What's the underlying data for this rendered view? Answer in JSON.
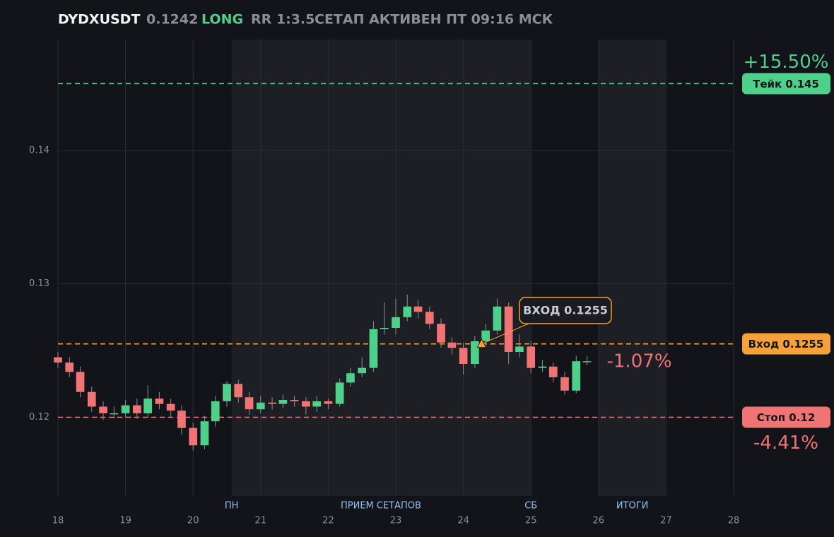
{
  "chart_data": {
    "type": "candlestick",
    "header": {
      "symbol": "DYDXUSDT",
      "price": "0.1242",
      "side": "LONG",
      "rr": "RR 1:3.5",
      "status": "СЕТАП АКТИВЕН ПТ 09:16 МСК"
    },
    "up_color": "#4fd08a",
    "down_color": "#f07474",
    "x": [
      18,
      18.17,
      18.33,
      18.5,
      18.67,
      18.83,
      19,
      19.17,
      19.33,
      19.5,
      19.67,
      19.83,
      20,
      20.17,
      20.33,
      20.5,
      20.67,
      20.83,
      21,
      21.17,
      21.33,
      21.5,
      21.67,
      21.83,
      22,
      22.17,
      22.33,
      22.5,
      22.67,
      22.83,
      23,
      23.17,
      23.33,
      23.5,
      23.67,
      23.83,
      24,
      24.17,
      24.33,
      24.5,
      24.67,
      24.83,
      25,
      25.17,
      25.33,
      25.5,
      25.67,
      25.83
    ],
    "open": [
      0.1245,
      0.1241,
      0.1234,
      0.1219,
      0.1208,
      0.1203,
      0.1203,
      0.1209,
      0.1203,
      0.1214,
      0.121,
      0.1205,
      0.1192,
      0.1179,
      0.1197,
      0.1212,
      0.1225,
      0.1215,
      0.1206,
      0.1211,
      0.121,
      0.1213,
      0.1212,
      0.1208,
      0.1212,
      0.121,
      0.1226,
      0.1233,
      0.1237,
      0.1266,
      0.1267,
      0.1275,
      0.1283,
      0.1279,
      0.127,
      0.1256,
      0.1252,
      0.124,
      0.1257,
      0.1265,
      0.1283,
      0.1249,
      0.1253,
      0.1237,
      0.1238,
      0.123,
      0.122,
      0.1242
    ],
    "high": [
      0.1249,
      0.1245,
      0.1238,
      0.1223,
      0.1212,
      0.1208,
      0.1213,
      0.1214,
      0.1224,
      0.1219,
      0.1214,
      0.1209,
      0.1196,
      0.1201,
      0.1216,
      0.1227,
      0.1228,
      0.1219,
      0.1216,
      0.1215,
      0.1217,
      0.1216,
      0.1215,
      0.1216,
      0.1214,
      0.1229,
      0.1237,
      0.1245,
      0.1272,
      0.1286,
      0.1289,
      0.1292,
      0.1288,
      0.1283,
      0.1274,
      0.126,
      0.1256,
      0.1261,
      0.127,
      0.1289,
      0.1286,
      0.1262,
      0.1257,
      0.1243,
      0.1241,
      0.1234,
      0.1246,
      0.1246
    ],
    "low": [
      0.1237,
      0.123,
      0.1215,
      0.1204,
      0.1198,
      0.1199,
      0.12,
      0.1199,
      0.12,
      0.1206,
      0.12,
      0.1187,
      0.1175,
      0.1176,
      0.1193,
      0.1208,
      0.1211,
      0.1202,
      0.1203,
      0.1206,
      0.1207,
      0.1208,
      0.1202,
      0.1204,
      0.1206,
      0.1208,
      0.1223,
      0.123,
      0.1234,
      0.1262,
      0.1262,
      0.1272,
      0.1274,
      0.1266,
      0.1252,
      0.1247,
      0.1232,
      0.1237,
      0.1253,
      0.1262,
      0.124,
      0.1245,
      0.1233,
      0.1234,
      0.1226,
      0.1217,
      0.1218,
      0.1239
    ],
    "close": [
      0.1241,
      0.1234,
      0.1219,
      0.1208,
      0.1203,
      0.1203,
      0.1209,
      0.1203,
      0.1214,
      0.121,
      0.1205,
      0.1192,
      0.1179,
      0.1197,
      0.1212,
      0.1225,
      0.1215,
      0.1206,
      0.1211,
      0.121,
      0.1213,
      0.1212,
      0.1208,
      0.1212,
      0.121,
      0.1226,
      0.1233,
      0.1237,
      0.1266,
      0.1267,
      0.1275,
      0.1283,
      0.1279,
      0.127,
      0.1256,
      0.1252,
      0.124,
      0.1257,
      0.1265,
      0.1283,
      0.1249,
      0.1253,
      0.1237,
      0.1238,
      0.123,
      0.122,
      0.1242,
      0.1242
    ],
    "xlim": [
      18,
      28
    ],
    "xticks": [
      18,
      19,
      20,
      21,
      22,
      23,
      24,
      25,
      26,
      27,
      28
    ],
    "ylim": [
      0.1141,
      0.1483
    ],
    "yticks": [
      0.12,
      0.13,
      0.14
    ],
    "grid": true,
    "zones": [
      [
        20.57,
        25
      ],
      [
        26,
        27
      ]
    ],
    "sessions": [
      {
        "label": "ПН",
        "x": 20.57
      },
      {
        "label": "ПРИЕМ СЕТАПОВ",
        "x": 22.78
      },
      {
        "label": "СБ",
        "x": 25
      },
      {
        "label": "ИТОГИ",
        "x": 26.5
      }
    ],
    "levels": [
      {
        "label": "Тейк 0.145",
        "value": 0.145,
        "color": "#4fd08a",
        "pct": "+15.50%"
      },
      {
        "label": "Вход 0.1255",
        "value": 0.1255,
        "color": "#f5a03a"
      },
      {
        "label": "Стоп 0.12",
        "value": 0.12,
        "color": "#f07474",
        "pct": "-4.41%"
      }
    ],
    "entry_marker": {
      "label": "ВХОД 0.1255",
      "x": 24.27,
      "value": 0.1255
    },
    "current_pct": "-1.07%"
  }
}
